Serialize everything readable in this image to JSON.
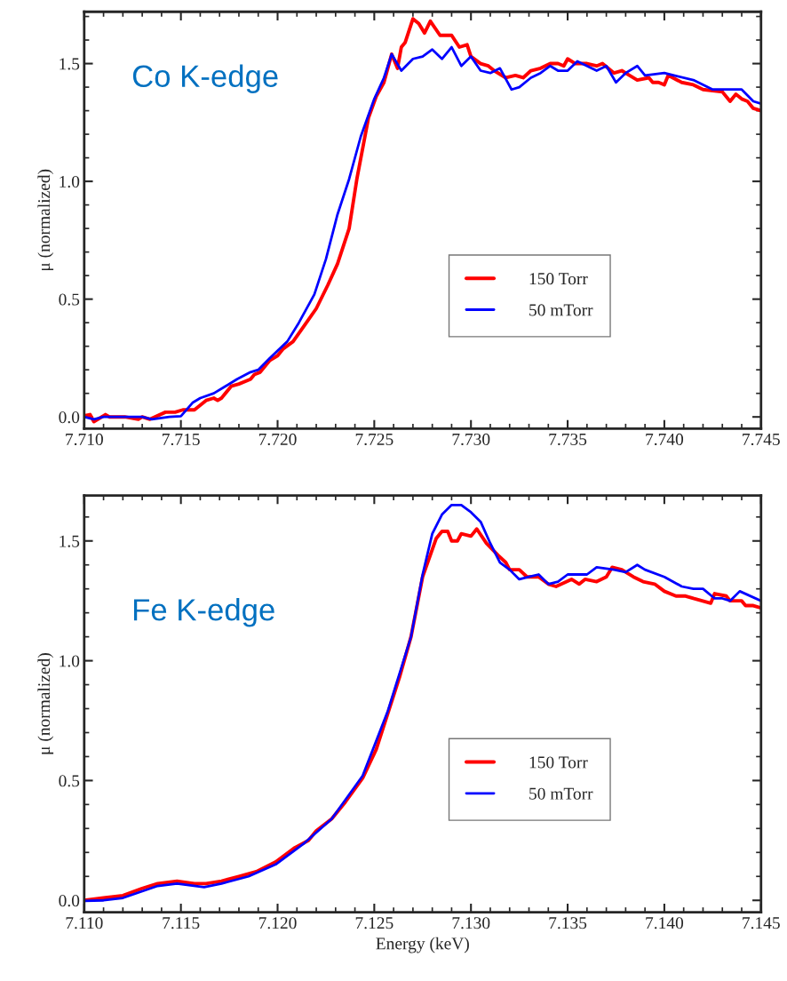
{
  "chart_data": [
    {
      "type": "line",
      "ylabel": "μ (normalized)",
      "annotations": [
        "Co K-edge"
      ],
      "legend": "lower right",
      "grid": false,
      "xlim": [
        7.71,
        7.745
      ],
      "xticks": [
        {
          "value": 7.71,
          "label": "7.710"
        },
        {
          "value": 7.715,
          "label": "7.715"
        },
        {
          "value": 7.72,
          "label": "7.720"
        },
        {
          "value": 7.725,
          "label": "7.725"
        },
        {
          "value": 7.73,
          "label": "7.730"
        },
        {
          "value": 7.735,
          "label": "7.735"
        },
        {
          "value": 7.74,
          "label": "7.740"
        },
        {
          "value": 7.745,
          "label": "7.745"
        }
      ],
      "ylim": [
        -0.05,
        1.72
      ],
      "yticks": [
        {
          "value": 0.0,
          "label": "0.0"
        },
        {
          "value": 0.5,
          "label": "0.5"
        },
        {
          "value": 1.0,
          "label": "1.0"
        },
        {
          "value": 1.5,
          "label": "1.5"
        }
      ],
      "series": [
        {
          "name": "150 Torr",
          "color": "#ff0000",
          "x": [
            7.71,
            7.7103,
            7.7105,
            7.7111,
            7.7113,
            7.7121,
            7.7128,
            7.713,
            7.7134,
            7.7142,
            7.7147,
            7.7151,
            7.7157,
            7.7163,
            7.7167,
            7.7169,
            7.7171,
            7.7176,
            7.718,
            7.7186,
            7.7188,
            7.7191,
            7.7196,
            7.72,
            7.7203,
            7.7208,
            7.7214,
            7.722,
            7.7226,
            7.7231,
            7.7237,
            7.7241,
            7.7247,
            7.7251,
            7.7255,
            7.7259,
            7.7262,
            7.7264,
            7.7266,
            7.727,
            7.7273,
            7.7276,
            7.7279,
            7.7284,
            7.729,
            7.7294,
            7.7298,
            7.73,
            7.7305,
            7.7309,
            7.7312,
            7.7318,
            7.7323,
            7.7327,
            7.7331,
            7.7336,
            7.7341,
            7.7345,
            7.7348,
            7.735,
            7.7354,
            7.736,
            7.7365,
            7.7368,
            7.7374,
            7.7378,
            7.7382,
            7.7386,
            7.7392,
            7.7394,
            7.7397,
            7.74,
            7.7402,
            7.7409,
            7.7415,
            7.742,
            7.743,
            7.7434,
            7.7437,
            7.744,
            7.7443,
            7.7446,
            7.745
          ],
          "values": [
            0.005,
            0.01,
            -0.02,
            0.01,
            0.0,
            0.0,
            -0.01,
            0.0,
            -0.01,
            0.02,
            0.02,
            0.03,
            0.03,
            0.07,
            0.08,
            0.07,
            0.08,
            0.13,
            0.14,
            0.16,
            0.18,
            0.19,
            0.24,
            0.26,
            0.29,
            0.32,
            0.39,
            0.46,
            0.56,
            0.65,
            0.8,
            1.01,
            1.27,
            1.36,
            1.42,
            1.54,
            1.48,
            1.57,
            1.59,
            1.69,
            1.67,
            1.63,
            1.68,
            1.62,
            1.62,
            1.57,
            1.58,
            1.53,
            1.5,
            1.49,
            1.47,
            1.44,
            1.45,
            1.44,
            1.47,
            1.48,
            1.5,
            1.5,
            1.49,
            1.52,
            1.5,
            1.5,
            1.49,
            1.5,
            1.46,
            1.47,
            1.45,
            1.43,
            1.44,
            1.42,
            1.42,
            1.41,
            1.45,
            1.42,
            1.41,
            1.39,
            1.38,
            1.34,
            1.37,
            1.35,
            1.34,
            1.31,
            1.3
          ]
        },
        {
          "name": "50 mTorr",
          "color": "#0000ff",
          "x": [
            7.71,
            7.7105,
            7.711,
            7.7121,
            7.713,
            7.7135,
            7.7144,
            7.715,
            7.7156,
            7.716,
            7.7167,
            7.7173,
            7.7179,
            7.7186,
            7.719,
            7.7196,
            7.7205,
            7.7211,
            7.7219,
            7.7225,
            7.7231,
            7.7237,
            7.7243,
            7.725,
            7.7255,
            7.7259,
            7.7264,
            7.727,
            7.7275,
            7.728,
            7.7285,
            7.729,
            7.7295,
            7.73,
            7.7305,
            7.731,
            7.7315,
            7.7321,
            7.7325,
            7.7331,
            7.7336,
            7.7341,
            7.7345,
            7.735,
            7.7355,
            7.736,
            7.7365,
            7.737,
            7.7375,
            7.738,
            7.7386,
            7.739,
            7.74,
            7.7405,
            7.7415,
            7.7425,
            7.7431,
            7.744,
            7.7446,
            7.745
          ],
          "values": [
            0.0,
            -0.01,
            0.0,
            0.0,
            0.0,
            -0.01,
            0.0,
            0.003,
            0.06,
            0.08,
            0.1,
            0.13,
            0.16,
            0.19,
            0.2,
            0.25,
            0.32,
            0.4,
            0.52,
            0.67,
            0.86,
            1.01,
            1.19,
            1.35,
            1.44,
            1.54,
            1.47,
            1.52,
            1.53,
            1.56,
            1.52,
            1.57,
            1.49,
            1.53,
            1.47,
            1.46,
            1.48,
            1.39,
            1.4,
            1.44,
            1.46,
            1.49,
            1.47,
            1.47,
            1.51,
            1.49,
            1.47,
            1.49,
            1.42,
            1.46,
            1.49,
            1.45,
            1.46,
            1.45,
            1.43,
            1.39,
            1.39,
            1.39,
            1.34,
            1.33
          ]
        }
      ]
    },
    {
      "type": "line",
      "xlabel": "Energy (keV)",
      "ylabel": "μ (normalized)",
      "annotations": [
        "Fe K-edge"
      ],
      "legend": "lower right",
      "grid": false,
      "xlim": [
        7.11,
        7.145
      ],
      "xticks": [
        {
          "value": 7.11,
          "label": "7.110"
        },
        {
          "value": 7.115,
          "label": "7.115"
        },
        {
          "value": 7.12,
          "label": "7.120"
        },
        {
          "value": 7.125,
          "label": "7.125"
        },
        {
          "value": 7.13,
          "label": "7.130"
        },
        {
          "value": 7.135,
          "label": "7.135"
        },
        {
          "value": 7.14,
          "label": "7.140"
        },
        {
          "value": 7.145,
          "label": "7.145"
        }
      ],
      "ylim": [
        -0.05,
        1.69
      ],
      "yticks": [
        {
          "value": 0.0,
          "label": "0.0"
        },
        {
          "value": 0.5,
          "label": "0.5"
        },
        {
          "value": 1.0,
          "label": "1.0"
        },
        {
          "value": 1.5,
          "label": "1.5"
        }
      ],
      "series": [
        {
          "name": "150 Torr",
          "color": "#ff0000",
          "x": [
            7.11,
            7.111,
            7.112,
            7.113,
            7.1138,
            7.1148,
            7.1157,
            7.1163,
            7.1171,
            7.118,
            7.1189,
            7.1199,
            7.1209,
            7.1216,
            7.122,
            7.1228,
            7.1235,
            7.1244,
            7.1251,
            7.1257,
            7.1263,
            7.1269,
            7.1275,
            7.1282,
            7.1285,
            7.1288,
            7.129,
            7.1293,
            7.1295,
            7.13,
            7.1303,
            7.1308,
            7.1314,
            7.1318,
            7.132,
            7.1325,
            7.1329,
            7.1335,
            7.134,
            7.1344,
            7.1352,
            7.1356,
            7.1359,
            7.1365,
            7.137,
            7.1373,
            7.1378,
            7.1384,
            7.1389,
            7.1395,
            7.14,
            7.1406,
            7.1411,
            7.1415,
            7.1424,
            7.1426,
            7.1432,
            7.1434,
            7.144,
            7.1442,
            7.1446,
            7.145
          ],
          "values": [
            0.0,
            0.01,
            0.02,
            0.05,
            0.07,
            0.08,
            0.07,
            0.07,
            0.08,
            0.1,
            0.12,
            0.16,
            0.22,
            0.25,
            0.29,
            0.34,
            0.41,
            0.51,
            0.63,
            0.78,
            0.93,
            1.1,
            1.35,
            1.51,
            1.54,
            1.54,
            1.5,
            1.5,
            1.53,
            1.52,
            1.55,
            1.49,
            1.44,
            1.41,
            1.38,
            1.38,
            1.35,
            1.35,
            1.32,
            1.31,
            1.34,
            1.32,
            1.34,
            1.33,
            1.35,
            1.39,
            1.38,
            1.35,
            1.33,
            1.32,
            1.29,
            1.27,
            1.27,
            1.26,
            1.24,
            1.28,
            1.27,
            1.25,
            1.25,
            1.23,
            1.23,
            1.22
          ]
        },
        {
          "name": "50 mTorr",
          "color": "#0000ff",
          "x": [
            7.11,
            7.111,
            7.112,
            7.1138,
            7.1148,
            7.1162,
            7.1171,
            7.1185,
            7.1199,
            7.1214,
            7.1228,
            7.1244,
            7.1257,
            7.1269,
            7.1275,
            7.128,
            7.1285,
            7.129,
            7.1295,
            7.13,
            7.1305,
            7.131,
            7.1315,
            7.132,
            7.1325,
            7.133,
            7.1335,
            7.134,
            7.1345,
            7.135,
            7.136,
            7.1365,
            7.1374,
            7.138,
            7.1386,
            7.139,
            7.14,
            7.1409,
            7.1415,
            7.142,
            7.1426,
            7.143,
            7.1434,
            7.1439,
            7.145
          ],
          "values": [
            -0.002,
            0.0,
            0.01,
            0.06,
            0.07,
            0.055,
            0.07,
            0.1,
            0.15,
            0.24,
            0.34,
            0.52,
            0.79,
            1.1,
            1.36,
            1.53,
            1.61,
            1.65,
            1.65,
            1.62,
            1.58,
            1.49,
            1.41,
            1.38,
            1.34,
            1.35,
            1.36,
            1.32,
            1.33,
            1.36,
            1.36,
            1.39,
            1.38,
            1.37,
            1.4,
            1.38,
            1.35,
            1.31,
            1.3,
            1.3,
            1.26,
            1.26,
            1.25,
            1.29,
            1.25
          ]
        }
      ]
    }
  ]
}
